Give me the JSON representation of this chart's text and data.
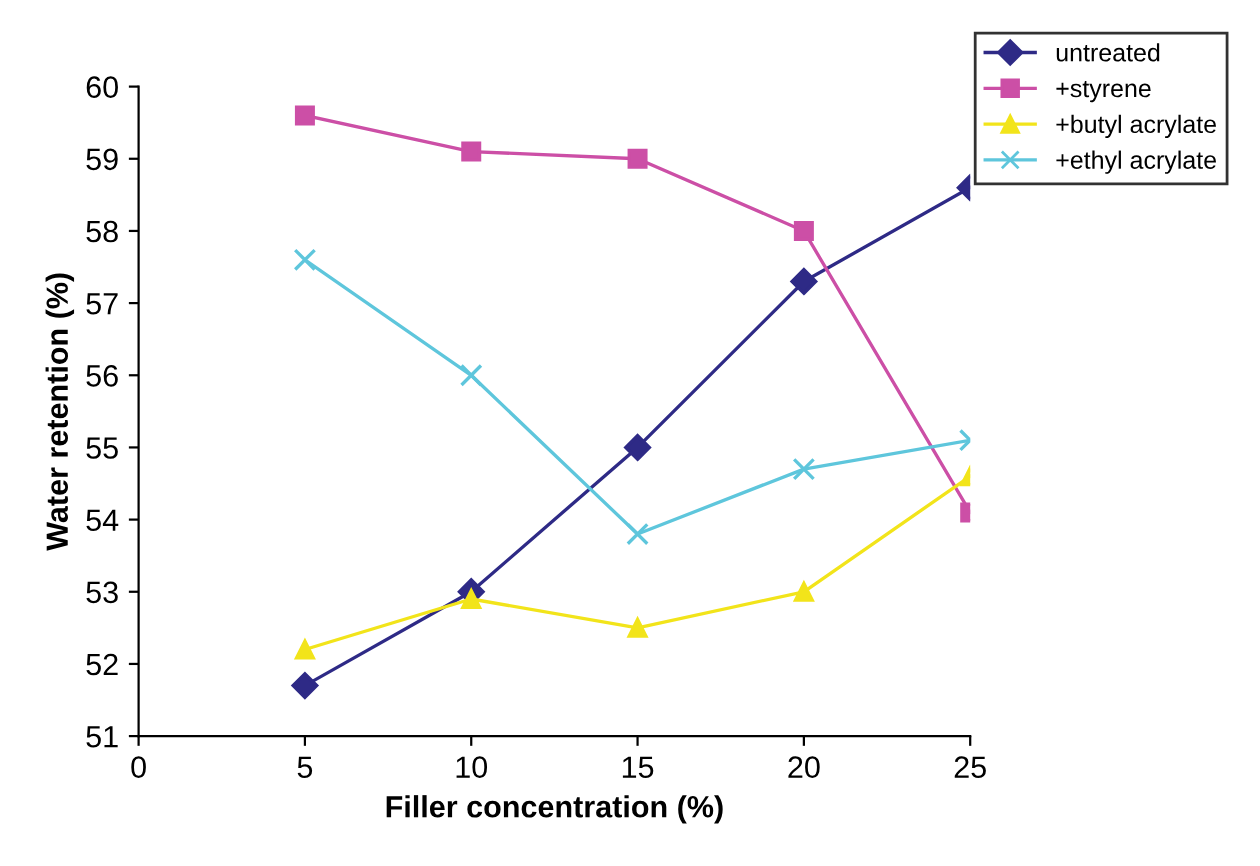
{
  "chart_data": {
    "type": "line",
    "xlabel": "Filler concentration (%)",
    "ylabel": "Water retention (%)",
    "x": [
      5,
      10,
      15,
      20,
      25
    ],
    "series": [
      {
        "name": "untreated",
        "color": "#2e2a86",
        "marker": "diamond",
        "values": [
          51.7,
          53.0,
          55.0,
          57.3,
          58.6
        ]
      },
      {
        "name": "+styrene",
        "color": "#cc4fa6",
        "marker": "square",
        "values": [
          59.6,
          59.1,
          59.0,
          58.0,
          54.1
        ]
      },
      {
        "name": "+butyl acrylate",
        "color": "#f2e41a",
        "marker": "triangle",
        "values": [
          52.2,
          52.9,
          52.5,
          53.0,
          54.6
        ]
      },
      {
        "name": "+ethyl acrylate",
        "color": "#5ec6dc",
        "marker": "cross",
        "values": [
          57.6,
          56.0,
          53.8,
          54.7,
          55.1
        ]
      }
    ],
    "xlim": [
      0,
      25
    ],
    "xticks": [
      0,
      5,
      10,
      15,
      20,
      25
    ],
    "ylim": [
      51,
      60
    ],
    "yticks": [
      51,
      52,
      53,
      54,
      55,
      56,
      57,
      58,
      59,
      60
    ],
    "grid": false,
    "legend": "top right",
    "line_style": "solid"
  }
}
